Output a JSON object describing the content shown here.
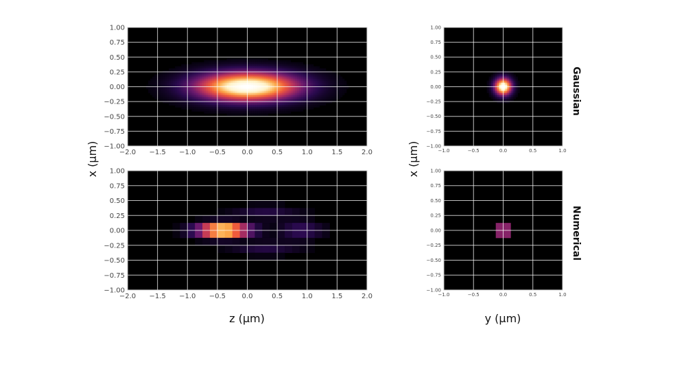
{
  "figure": {
    "xlabel_left": "z (μm)",
    "xlabel_right": "y (μm)",
    "ylabel_left": "x (μm)",
    "ylabel_right": "x (μm)",
    "row_labels": [
      "Gaussian",
      "Numerical"
    ],
    "colormap": [
      "#000004",
      "#2a0a4f",
      "#6a1a6e",
      "#b8325e",
      "#ee5a3c",
      "#fca94a",
      "#fff3c8",
      "#ffffff"
    ],
    "grid_color": "#ffffff"
  },
  "chart_data": [
    {
      "id": "gaussian-xz",
      "type": "heatmap",
      "row": "Gaussian",
      "xlabel": "",
      "ylabel": "",
      "xlim": [
        -2.0,
        2.0
      ],
      "ylim": [
        -1.0,
        1.0
      ],
      "xticks": [
        "−2.0",
        "−1.5",
        "−1.0",
        "−0.5",
        "0.0",
        "0.5",
        "1.0",
        "1.5",
        "2.0"
      ],
      "yticks": [
        "1.00",
        "0.75",
        "0.50",
        "0.25",
        "0.00",
        "−0.25",
        "−0.50",
        "−0.75",
        "−1.00"
      ],
      "grid": true,
      "peak": {
        "x": 0.0,
        "y": 0.0
      },
      "sigma_x": 0.6,
      "sigma_y": 0.17,
      "pixelated": false
    },
    {
      "id": "gaussian-xy",
      "type": "heatmap",
      "row": "Gaussian",
      "xlabel": "",
      "ylabel": "",
      "xlim": [
        -1.0,
        1.0
      ],
      "ylim": [
        -1.0,
        1.0
      ],
      "xticks": [
        "−1.0",
        "−0.5",
        "0.0",
        "0.5",
        "1.0"
      ],
      "yticks": [
        "1.00",
        "0.75",
        "0.50",
        "0.25",
        "0.00",
        "−0.25",
        "−0.50",
        "−0.75",
        "−1.00"
      ],
      "grid": true,
      "peak": {
        "x": 0.0,
        "y": 0.0
      },
      "sigma_x": 0.1,
      "sigma_y": 0.1,
      "pixelated": false
    },
    {
      "id": "numerical-xz",
      "type": "heatmap",
      "row": "Numerical",
      "xlabel": "",
      "ylabel": "",
      "xlim": [
        -2.0,
        2.0
      ],
      "ylim": [
        -1.0,
        1.0
      ],
      "xticks": [
        "−2.0",
        "−1.5",
        "−1.0",
        "−0.5",
        "0.0",
        "0.5",
        "1.0",
        "1.5",
        "2.0"
      ],
      "yticks": [
        "1.00",
        "0.75",
        "0.50",
        "0.25",
        "0.00",
        "−0.25",
        "−0.50",
        "−0.75",
        "−1.00"
      ],
      "grid": true,
      "peak": {
        "x": -0.4,
        "y": 0.0
      },
      "sigma_x": 0.3,
      "sigma_y": 0.08,
      "pixelated": true
    },
    {
      "id": "numerical-xy",
      "type": "heatmap",
      "row": "Numerical",
      "xlabel": "",
      "ylabel": "",
      "xlim": [
        -1.0,
        1.0
      ],
      "ylim": [
        -1.0,
        1.0
      ],
      "xticks": [
        "−1.0",
        "−0.5",
        "0.0",
        "0.5",
        "1.0"
      ],
      "yticks": [
        "1.00",
        "0.75",
        "0.50",
        "0.25",
        "0.00",
        "−0.25",
        "−0.50",
        "−0.75",
        "−1.00"
      ],
      "grid": true,
      "peak": {
        "x": 0.0,
        "y": 0.0
      },
      "sigma_x": 0.06,
      "sigma_y": 0.06,
      "pixelated": true
    }
  ]
}
